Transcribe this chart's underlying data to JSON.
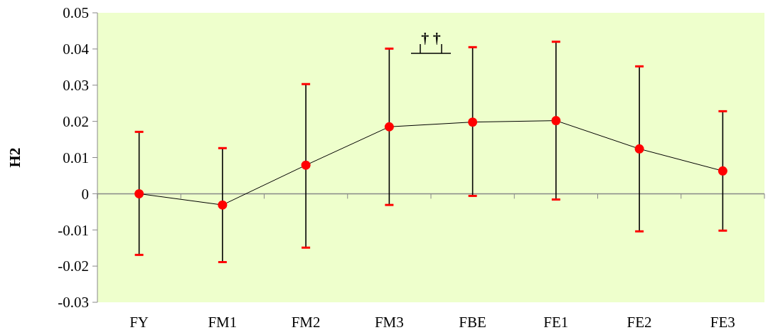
{
  "chart_data": {
    "type": "line",
    "ylabel": "H2",
    "categories": [
      "FY",
      "FM1",
      "FM2",
      "FM3",
      "FBE",
      "FE1",
      "FE2",
      "FE3"
    ],
    "series": [
      {
        "color": "#ff0000",
        "values": [
          0,
          -0.0031,
          0.0079,
          0.0185,
          0.0198,
          0.0202,
          0.0124,
          0.0063
        ],
        "errors": [
          [
            -0.0169,
            0.0171
          ],
          [
            -0.0189,
            0.0126
          ],
          [
            -0.0149,
            0.0303
          ],
          [
            -0.0031,
            0.0401
          ],
          [
            -0.0006,
            0.0405
          ],
          [
            -0.0016,
            0.042
          ],
          [
            -0.0104,
            0.0352
          ],
          [
            -0.0102,
            0.0228
          ]
        ]
      }
    ],
    "ylim": [
      -0.03,
      0.05
    ],
    "yticks": [
      -0.03,
      -0.02,
      -0.01,
      0,
      0.01,
      0.02,
      0.03,
      0.04,
      0.05
    ],
    "marker": "circle",
    "line_style": "solid",
    "annotations": [
      "† †"
    ]
  }
}
